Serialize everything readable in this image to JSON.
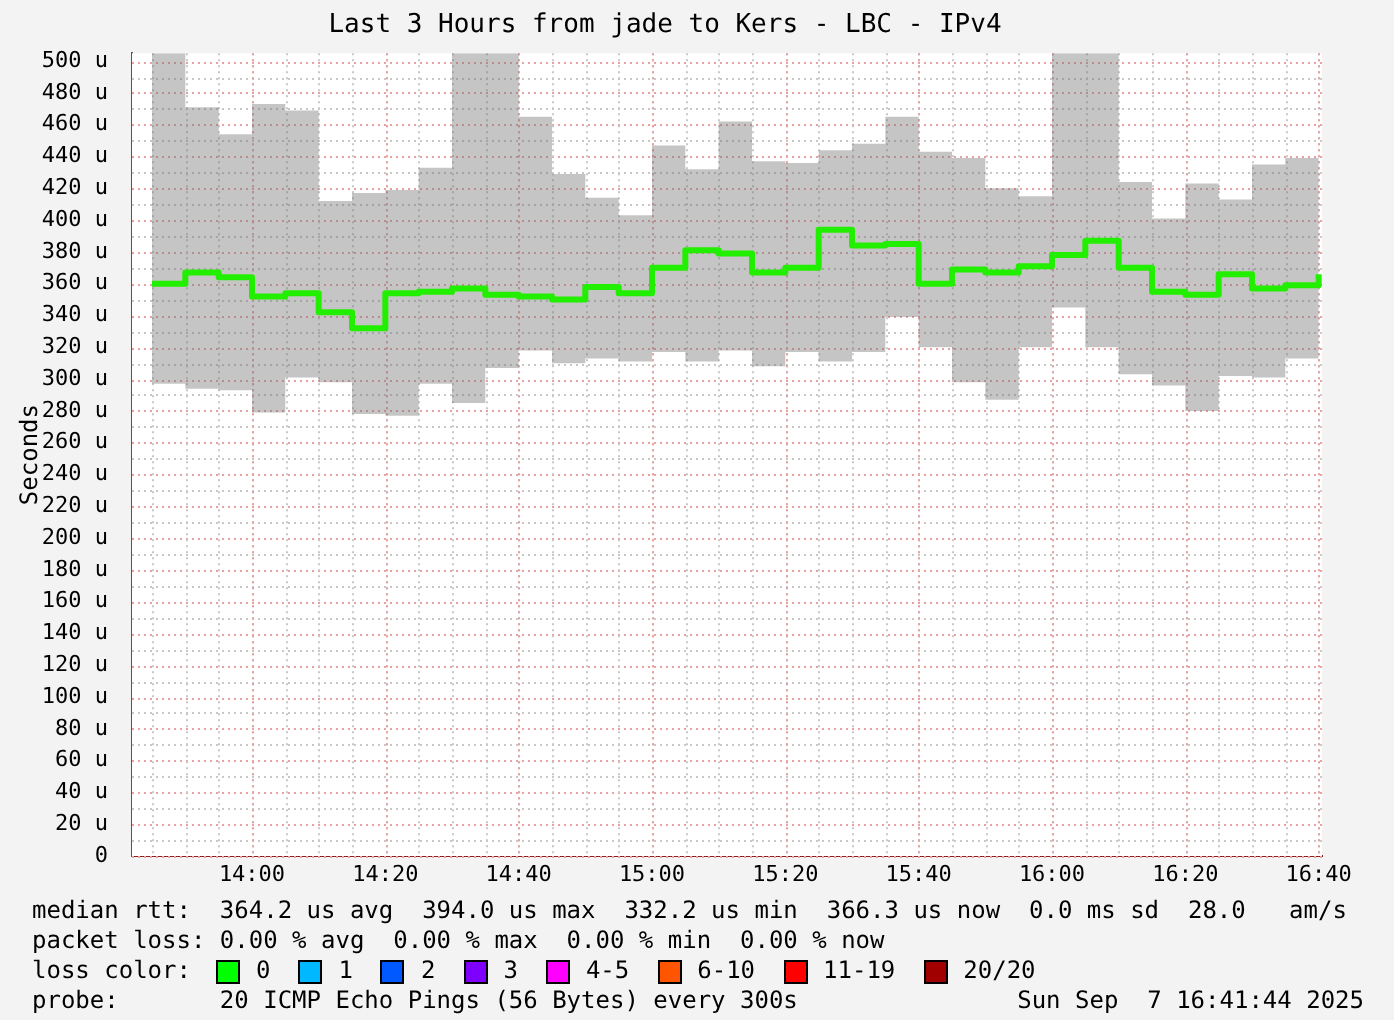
{
  "chart_data": {
    "type": "step",
    "title": "Last 3 Hours from jade to Kers - LBC - IPv4",
    "ylabel": "Seconds",
    "x": [
      13.75,
      13.8333,
      13.9167,
      14,
      14.0833,
      14.1667,
      14.25,
      14.3333,
      14.4167,
      14.5,
      14.5833,
      14.6667,
      14.75,
      14.8333,
      14.9167,
      15,
      15.0833,
      15.1667,
      15.25,
      15.3333,
      15.4167,
      15.5,
      15.5833,
      15.6667,
      15.75,
      15.8333,
      15.9167,
      16,
      16.0833,
      16.1667,
      16.25,
      16.3333,
      16.4167,
      16.5,
      16.5833,
      16.6667
    ],
    "series": [
      {
        "color": "#22ee00",
        "values": [
          360,
          367,
          364,
          352,
          354,
          342,
          332,
          354,
          355,
          357,
          353,
          352,
          350,
          358,
          354,
          370,
          381,
          379,
          367,
          370,
          394,
          384,
          385,
          360,
          369,
          367,
          371,
          378,
          387,
          370,
          355,
          353,
          366,
          357,
          359,
          366
        ],
        "lower": [
          297,
          294,
          293,
          279,
          301,
          298,
          278,
          277,
          297,
          285,
          307,
          318,
          310,
          313,
          311,
          317,
          311,
          318,
          308,
          317,
          311,
          317,
          339,
          320,
          298,
          287,
          320,
          345,
          320,
          303,
          296,
          280,
          302,
          301,
          313,
          309
        ],
        "upper": [
          505,
          471,
          454,
          473,
          469,
          412,
          417,
          419,
          433,
          505,
          505,
          465,
          429,
          414,
          403,
          447,
          432,
          462,
          437,
          436,
          444,
          448,
          465,
          443,
          439,
          420,
          415,
          505,
          505,
          424,
          401,
          423,
          413,
          435,
          439,
          505
        ]
      }
    ],
    "xlim": [
      13.7,
      16.675
    ],
    "xticks": [
      {
        "value": 14,
        "label": "14:00"
      },
      {
        "value": 14.3333,
        "label": "14:20"
      },
      {
        "value": 14.6667,
        "label": "14:40"
      },
      {
        "value": 15,
        "label": "15:00"
      },
      {
        "value": 15.3333,
        "label": "15:20"
      },
      {
        "value": 15.6667,
        "label": "15:40"
      },
      {
        "value": 16,
        "label": "16:00"
      },
      {
        "value": 16.3333,
        "label": "16:20"
      },
      {
        "value": 16.6667,
        "label": "16:40"
      }
    ],
    "ylim": [
      0,
      505
    ],
    "yticks": [
      0,
      {
        "value": 20,
        "label": "20 u"
      },
      {
        "value": 40,
        "label": "40 u"
      },
      {
        "value": 60,
        "label": "60 u"
      },
      {
        "value": 80,
        "label": "80 u"
      },
      {
        "value": 100,
        "label": "100 u"
      },
      {
        "value": 120,
        "label": "120 u"
      },
      {
        "value": 140,
        "label": "140 u"
      },
      {
        "value": 160,
        "label": "160 u"
      },
      {
        "value": 180,
        "label": "180 u"
      },
      {
        "value": 200,
        "label": "200 u"
      },
      {
        "value": 220,
        "label": "220 u"
      },
      {
        "value": 240,
        "label": "240 u"
      },
      {
        "value": 260,
        "label": "260 u"
      },
      {
        "value": 280,
        "label": "280 u"
      },
      {
        "value": 300,
        "label": "300 u"
      },
      {
        "value": 320,
        "label": "320 u"
      },
      {
        "value": 340,
        "label": "340 u"
      },
      {
        "value": 360,
        "label": "360 u"
      },
      {
        "value": 380,
        "label": "380 u"
      },
      {
        "value": 400,
        "label": "400 u"
      },
      {
        "value": 420,
        "label": "420 u"
      },
      {
        "value": 440,
        "label": "440 u"
      },
      {
        "value": 460,
        "label": "460 u"
      },
      {
        "value": 480,
        "label": "480 u"
      },
      {
        "value": 500,
        "label": "500 u"
      }
    ],
    "grid": true,
    "annotations": [
      "median rtt:  364.2 us avg  394.0 us max  332.2 us min  366.3 us now  0.0 ms sd  28.0   am/s",
      "packet loss: 0.00 % avg  0.00 % max  0.00 % min  0.00 % now",
      "loss color:",
      "0",
      "1",
      "2",
      "3",
      "4-5",
      "6-10",
      "11-19",
      "20/20",
      "probe:       20 ICMP Echo Pings (56 Bytes) every 300s",
      "Sun Sep  7 16:41:44 2025"
    ]
  }
}
